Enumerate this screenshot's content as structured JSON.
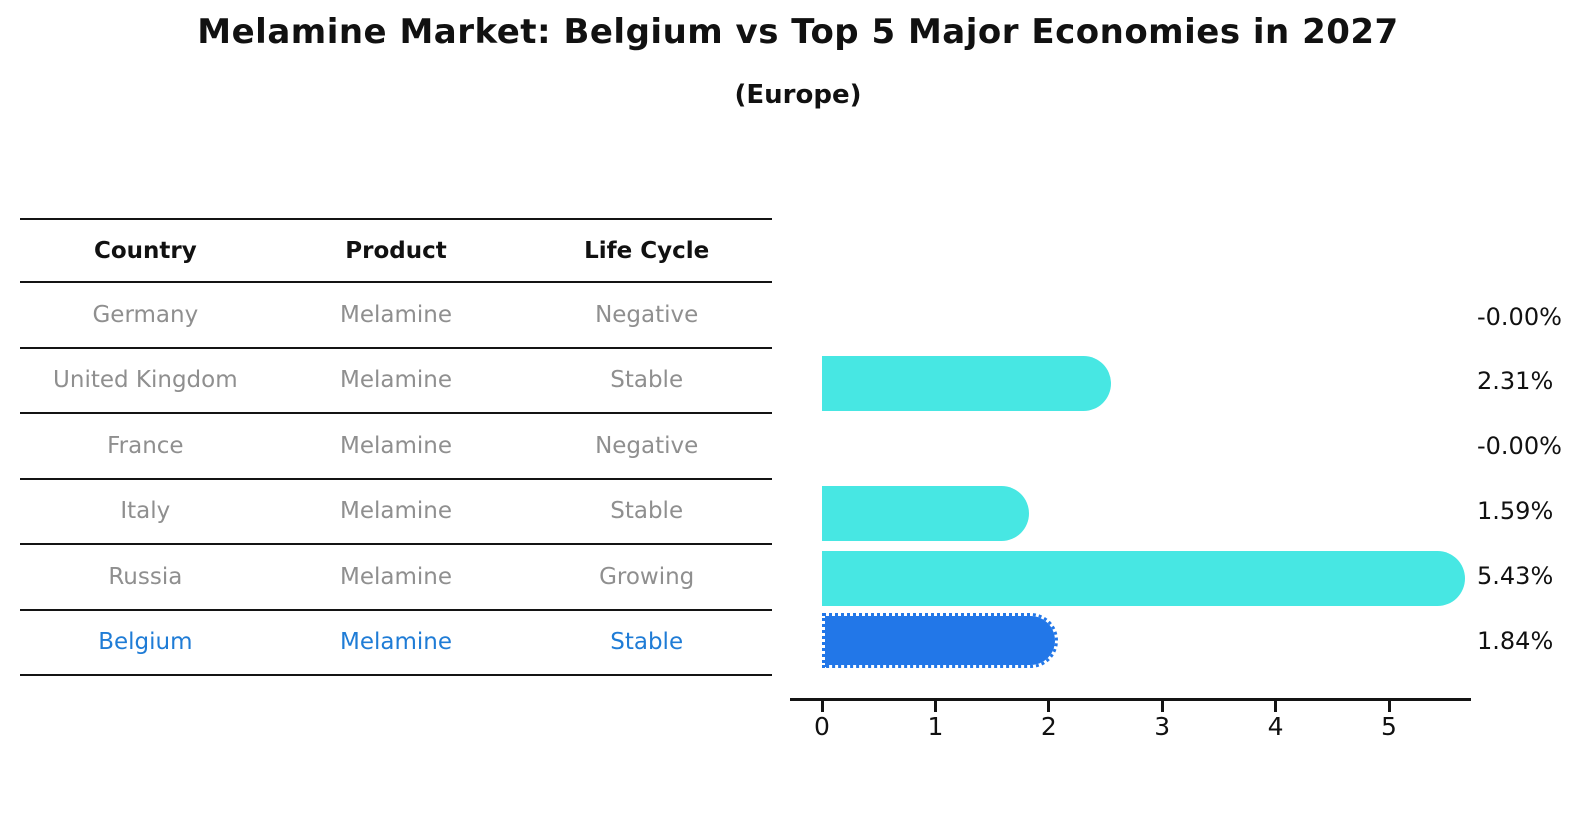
{
  "title": "Melamine Market: Belgium vs Top 5 Major Economies in 2027",
  "subtitle": "(Europe)",
  "table": {
    "headers": [
      "Country",
      "Product",
      "Life Cycle"
    ],
    "rows": [
      {
        "country": "Germany",
        "product": "Melamine",
        "life_cycle": "Negative",
        "highlight": false
      },
      {
        "country": "United Kingdom",
        "product": "Melamine",
        "life_cycle": "Stable",
        "highlight": false
      },
      {
        "country": "France",
        "product": "Melamine",
        "life_cycle": "Negative",
        "highlight": false
      },
      {
        "country": "Italy",
        "product": "Melamine",
        "life_cycle": "Stable",
        "highlight": false
      },
      {
        "country": "Russia",
        "product": "Melamine",
        "life_cycle": "Growing",
        "highlight": false
      },
      {
        "country": "Belgium",
        "product": "Melamine",
        "life_cycle": "Stable",
        "highlight": true
      }
    ]
  },
  "chart_data": {
    "type": "bar",
    "orientation": "horizontal",
    "title": "Melamine Market: Belgium vs Top 5 Major Economies in 2027 (Europe)",
    "categories": [
      "Germany",
      "United Kingdom",
      "France",
      "Italy",
      "Russia",
      "Belgium"
    ],
    "values": [
      -0.0,
      2.31,
      -0.0,
      1.59,
      5.43,
      1.84
    ],
    "value_labels": [
      "-0.00%",
      "2.31%",
      "-0.00%",
      "1.59%",
      "5.43%",
      "1.84%"
    ],
    "x_ticks": [
      0,
      1,
      2,
      3,
      4,
      5
    ],
    "xlim": [
      0,
      5.73
    ],
    "grid": false,
    "legend": "none",
    "bar_color": "#47E7E3",
    "highlight_color": "#2277E8",
    "highlight_index": 5,
    "highlight_style": "dotted-border"
  },
  "colors": {
    "bar": "#47E7E3",
    "highlight_bar": "#2277E8",
    "highlight_text": "#1F7CD6",
    "muted_text": "#8F8F8F",
    "line": "#141414",
    "background": "#FFFFFF"
  }
}
